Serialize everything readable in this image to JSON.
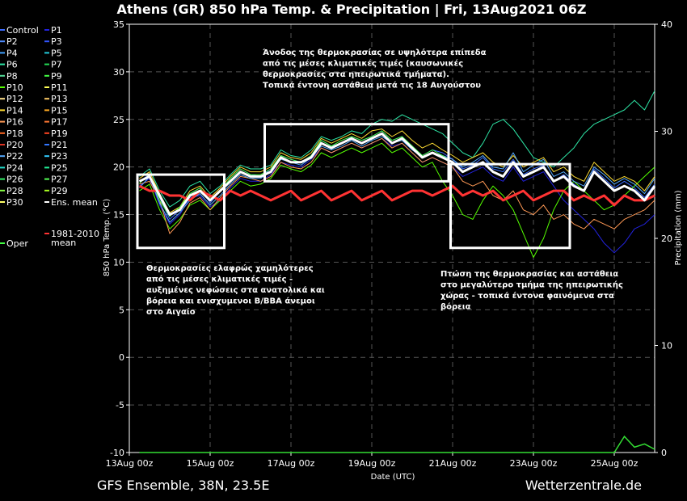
{
  "header": {
    "title": "Athens  (GR)  850 hPa Temp. & Precipitation | Fri, 13Aug2021 06Z"
  },
  "footer": {
    "left": "GFS Ensemble, 38N, 23.5E",
    "right": "Wetterzentrale.de"
  },
  "legend": {
    "entries": [
      {
        "label": "Control",
        "color": "#3a6bff"
      },
      {
        "label": "P1",
        "color": "#2222dd"
      },
      {
        "label": "P2",
        "color": "#4f8cff"
      },
      {
        "label": "P3",
        "color": "#3355ff"
      },
      {
        "label": "P4",
        "color": "#3fa0ff"
      },
      {
        "label": "P5",
        "color": "#22ccdd"
      },
      {
        "label": "P6",
        "color": "#2ee6a6"
      },
      {
        "label": "P7",
        "color": "#22dd55"
      },
      {
        "label": "P8",
        "color": "#55dd99"
      },
      {
        "label": "P9",
        "color": "#44ff44"
      },
      {
        "label": "P10",
        "color": "#55ff00"
      },
      {
        "label": "P11",
        "color": "#ffff55"
      },
      {
        "label": "P12",
        "color": "#ffe08a"
      },
      {
        "label": "P13",
        "color": "#ffcc66"
      },
      {
        "label": "P14",
        "color": "#ffdd33"
      },
      {
        "label": "P15",
        "color": "#ffaa22"
      },
      {
        "label": "P16",
        "color": "#ff9955"
      },
      {
        "label": "P17",
        "color": "#ff7733"
      },
      {
        "label": "P18",
        "color": "#ff6622"
      },
      {
        "label": "P19",
        "color": "#ff4422"
      },
      {
        "label": "P20",
        "color": "#dd3322"
      },
      {
        "label": "P21",
        "color": "#3377ff"
      },
      {
        "label": "P22",
        "color": "#55aaff"
      },
      {
        "label": "P23",
        "color": "#33ccff"
      },
      {
        "label": "P24",
        "color": "#22ddcc"
      },
      {
        "label": "P25",
        "color": "#22ee99"
      },
      {
        "label": "P26",
        "color": "#33ee66"
      },
      {
        "label": "P27",
        "color": "#55ff55"
      },
      {
        "label": "P28",
        "color": "#88ff44"
      },
      {
        "label": "P29",
        "color": "#aaff22"
      },
      {
        "label": "P30",
        "color": "#ffff66"
      },
      {
        "label": "Ens. mean",
        "color": "#ffffff"
      },
      {
        "label": "Oper",
        "color": "#44ff44"
      },
      {
        "label": "1981-2010\nmean",
        "color": "#ff3333"
      }
    ]
  },
  "annotations": [
    {
      "lines": [
        "Άνοδος της θερμοκρασίας σε υψηλότερα επίπεδα",
        "από τις μέσες κλιματικές τιμές (καυσωνικές",
        "θερμοκρασίες στα ηπειρωτικά τμήματα).",
        "Τοπικά έντονη αστάθεια μετά τις 18 Αυγούστου"
      ]
    },
    {
      "lines": [
        "Θερμοκρασίες ελαφρώς χαμηλότερες",
        "από τις μέσες κλιματικές τιμές -",
        "αυξημένες νεφώσεις στα ανατολικά και",
        "βόρεια και ενισχυμενοι Β/ΒΒΑ άνεμοι",
        "στο Αιγαίο"
      ]
    },
    {
      "lines": [
        "Πτώση της θερμοκρασίας και αστάθεια",
        "στο μεγαλύτερο τμήμα της ηπειρωτικής",
        "χώρας - τοπικά έντονα φαινόμενα στα",
        "βόρεια"
      ]
    }
  ],
  "chart_data": {
    "type": "line",
    "title": "Athens  (GR)  850 hPa Temp. & Precipitation | Fri, 13Aug2021 06Z",
    "xlabel": "Date (UTC)",
    "ylabel": "850 hPa Temp. (°C)",
    "y2label": "Precipitation (mm)",
    "xlim": [
      0,
      13
    ],
    "ylim": [
      -10,
      35
    ],
    "y2lim": [
      0,
      40
    ],
    "xticks": [
      0,
      2,
      4,
      6,
      8,
      10,
      12
    ],
    "xtick_labels": [
      "13Aug 00z",
      "15Aug 00z",
      "17Aug 00z",
      "19Aug 00z",
      "21Aug 00z",
      "23Aug 00z",
      "25Aug 00z"
    ],
    "yticks": [
      -10,
      -5,
      0,
      5,
      10,
      15,
      20,
      25,
      30,
      35
    ],
    "y2ticks": [
      0,
      10,
      20,
      30,
      40
    ],
    "grid": true,
    "legend_position": "left-outside",
    "highlight_boxes": [
      {
        "x": [
          0.2,
          2.35
        ],
        "y": [
          11.5,
          19.2
        ]
      },
      {
        "x": [
          3.35,
          7.9
        ],
        "y": [
          18.5,
          24.5
        ]
      },
      {
        "x": [
          7.95,
          10.9
        ],
        "y": [
          11.5,
          20.3
        ]
      }
    ],
    "times": [
      0.25,
      0.5,
      0.75,
      1.0,
      1.25,
      1.5,
      1.75,
      2.0,
      2.25,
      2.5,
      2.75,
      3.0,
      3.25,
      3.5,
      3.75,
      4.0,
      4.25,
      4.5,
      4.75,
      5.0,
      5.25,
      5.5,
      5.75,
      6.0,
      6.25,
      6.5,
      6.75,
      7.0,
      7.25,
      7.5,
      7.75,
      8.0,
      8.25,
      8.5,
      8.75,
      9.0,
      9.25,
      9.5,
      9.75,
      10.0,
      10.25,
      10.5,
      10.75,
      11.0,
      11.25,
      11.5,
      11.75,
      12.0,
      12.25,
      12.5,
      12.75,
      13.0
    ],
    "ens_mean": [
      18.5,
      19.0,
      17.0,
      15.0,
      15.5,
      17.0,
      17.5,
      16.5,
      17.5,
      18.5,
      19.5,
      19.0,
      19.0,
      19.5,
      21.0,
      20.5,
      20.5,
      21.0,
      22.5,
      22.0,
      22.5,
      23.0,
      22.5,
      23.0,
      23.5,
      22.5,
      23.0,
      22.0,
      21.0,
      21.5,
      21.0,
      20.5,
      19.5,
      20.0,
      20.5,
      19.5,
      19.0,
      20.5,
      19.0,
      19.5,
      20.0,
      18.5,
      19.0,
      18.0,
      17.5,
      19.5,
      18.5,
      17.5,
      18.0,
      17.5,
      16.5,
      18.0
    ],
    "climate_mean": [
      18.0,
      17.5,
      17.5,
      17.0,
      17.0,
      16.5,
      17.5,
      17.0,
      16.5,
      17.5,
      17.0,
      17.5,
      17.0,
      16.5,
      17.0,
      17.5,
      16.5,
      17.0,
      17.5,
      16.5,
      17.0,
      17.5,
      16.5,
      17.0,
      17.5,
      16.5,
      17.0,
      17.5,
      17.5,
      17.0,
      17.5,
      18.0,
      17.0,
      17.5,
      17.0,
      17.5,
      16.5,
      17.0,
      17.5,
      16.5,
      17.0,
      17.5,
      17.5,
      16.5,
      17.0,
      16.5,
      17.0,
      16.0,
      17.0,
      16.5,
      16.5,
      17.0
    ],
    "series": [
      {
        "name": "Control",
        "values": [
          18.5,
          19.2,
          16.8,
          14.5,
          15.5,
          17.2,
          17.8,
          16.2,
          17.5,
          18.8,
          19.8,
          19.2,
          19.0,
          19.8,
          21.2,
          20.8,
          20.5,
          21.2,
          22.8,
          22.2,
          22.5,
          23.2,
          22.8,
          23.2,
          23.8,
          22.8,
          23.2,
          22.2,
          21.2,
          21.8,
          21.5,
          20.8,
          19.8,
          20.2,
          21.0,
          19.8,
          19.5,
          20.8,
          19.2,
          19.8,
          20.2,
          18.5,
          19.2,
          18.2,
          17.5,
          19.8,
          18.8,
          17.8,
          18.5,
          17.8,
          16.8,
          18.2
        ]
      },
      {
        "name": "P1",
        "values": [
          18.0,
          18.8,
          16.0,
          14.0,
          15.0,
          16.8,
          17.0,
          15.8,
          16.5,
          17.8,
          18.8,
          18.5,
          18.5,
          19.2,
          20.5,
          20.2,
          20.0,
          20.8,
          22.0,
          21.5,
          22.0,
          22.5,
          22.0,
          22.5,
          23.0,
          22.2,
          22.5,
          21.5,
          20.5,
          21.0,
          20.5,
          20.0,
          19.0,
          19.5,
          20.0,
          19.0,
          18.5,
          20.0,
          18.5,
          19.0,
          19.5,
          18.0,
          16.5,
          15.5,
          14.5,
          13.5,
          12.0,
          11.0,
          12.0,
          13.5,
          14.0,
          15.0
        ]
      },
      {
        "name": "P6",
        "values": [
          19.0,
          19.8,
          17.5,
          15.8,
          16.5,
          18.0,
          18.5,
          17.2,
          18.0,
          19.2,
          20.2,
          19.8,
          19.8,
          20.2,
          21.8,
          21.2,
          21.0,
          21.8,
          23.2,
          22.8,
          23.2,
          23.8,
          23.5,
          24.5,
          25.0,
          24.8,
          25.5,
          25.0,
          24.5,
          24.0,
          23.5,
          22.5,
          21.5,
          21.0,
          22.5,
          24.5,
          25.0,
          24.0,
          22.5,
          21.0,
          20.5,
          20.0,
          21.0,
          22.0,
          23.5,
          24.5,
          25.0,
          25.5,
          26.0,
          27.0,
          26.0,
          28.0
        ]
      },
      {
        "name": "P10",
        "values": [
          17.5,
          18.2,
          15.5,
          13.5,
          14.5,
          16.0,
          16.5,
          15.5,
          16.5,
          17.5,
          18.5,
          18.0,
          18.2,
          18.8,
          20.2,
          19.8,
          19.5,
          20.2,
          21.5,
          21.0,
          21.5,
          22.0,
          21.5,
          22.0,
          22.5,
          21.5,
          22.0,
          21.0,
          20.0,
          20.5,
          18.5,
          17.0,
          15.0,
          14.5,
          16.5,
          18.0,
          17.0,
          15.5,
          13.0,
          10.5,
          12.5,
          15.5,
          17.5,
          18.5,
          17.5,
          16.5,
          15.5,
          16.0,
          17.0,
          18.0,
          19.0,
          20.0
        ]
      },
      {
        "name": "P14",
        "values": [
          18.8,
          19.5,
          17.2,
          15.2,
          15.8,
          17.5,
          18.0,
          16.8,
          17.8,
          19.0,
          20.0,
          19.5,
          19.5,
          20.0,
          21.5,
          21.0,
          20.8,
          21.5,
          23.0,
          22.5,
          23.0,
          23.5,
          23.0,
          23.8,
          24.0,
          23.2,
          23.8,
          22.8,
          22.0,
          22.5,
          21.8,
          21.2,
          20.5,
          21.0,
          21.5,
          20.5,
          20.0,
          21.2,
          20.0,
          20.5,
          21.0,
          19.5,
          20.0,
          19.0,
          18.5,
          20.5,
          19.5,
          18.5,
          19.0,
          18.5,
          17.5,
          19.0
        ]
      },
      {
        "name": "P16",
        "values": [
          18.2,
          18.5,
          16.5,
          13.0,
          14.2,
          16.2,
          16.8,
          15.5,
          16.8,
          18.0,
          19.0,
          18.8,
          18.5,
          19.0,
          20.5,
          20.0,
          19.8,
          20.5,
          22.0,
          21.5,
          22.0,
          22.5,
          22.0,
          22.5,
          23.0,
          22.0,
          22.5,
          21.5,
          20.5,
          21.0,
          20.5,
          20.0,
          18.5,
          18.0,
          18.5,
          17.0,
          16.5,
          17.5,
          15.5,
          15.0,
          16.0,
          14.5,
          15.0,
          14.0,
          13.5,
          14.5,
          14.0,
          13.5,
          14.5,
          15.0,
          15.5,
          16.5
        ]
      },
      {
        "name": "P22",
        "values": [
          17.8,
          19.0,
          16.2,
          14.2,
          15.2,
          16.5,
          17.2,
          16.0,
          17.0,
          18.2,
          19.2,
          18.8,
          18.8,
          19.5,
          20.8,
          20.5,
          20.2,
          21.0,
          22.2,
          21.8,
          22.2,
          22.8,
          22.2,
          22.8,
          23.2,
          22.5,
          22.8,
          21.8,
          21.0,
          21.5,
          21.2,
          20.8,
          20.0,
          20.5,
          21.2,
          20.0,
          19.8,
          21.5,
          19.5,
          20.2,
          20.8,
          19.0,
          19.5,
          18.5,
          18.0,
          20.0,
          19.2,
          18.2,
          18.8,
          18.2,
          17.2,
          18.8
        ]
      },
      {
        "name": "Oper",
        "values": [
          18.3,
          19.2,
          16.5,
          14.8,
          15.8,
          17.2,
          17.8,
          16.5,
          17.5,
          18.8,
          19.8,
          19.2,
          19.2,
          19.8,
          21.2,
          20.8,
          20.5,
          21.2,
          22.8,
          22.2,
          22.8,
          23.2,
          22.8,
          23.2,
          23.8,
          22.8,
          23.2,
          22.2,
          21.2,
          21.8,
          21.2,
          20.5,
          19.5,
          20.0,
          20.5,
          19.5,
          19.0,
          20.5,
          19.0,
          19.5,
          20.0,
          18.5,
          19.0,
          18.0,
          17.5,
          19.5,
          18.5,
          17.5,
          18.0,
          17.5,
          16.5,
          18.0
        ]
      }
    ],
    "precip": [
      0,
      0,
      0,
      0,
      0,
      0,
      0,
      0,
      0,
      0,
      0,
      0,
      0,
      0,
      0,
      0,
      0,
      0,
      0,
      0,
      0,
      0,
      0,
      0,
      0,
      0,
      0,
      0,
      0,
      0,
      0,
      0,
      0,
      0,
      0,
      0,
      0,
      0,
      0,
      0,
      0,
      0,
      0,
      0,
      0,
      0,
      0,
      0,
      1.5,
      0.5,
      0.8,
      0.3
    ]
  }
}
